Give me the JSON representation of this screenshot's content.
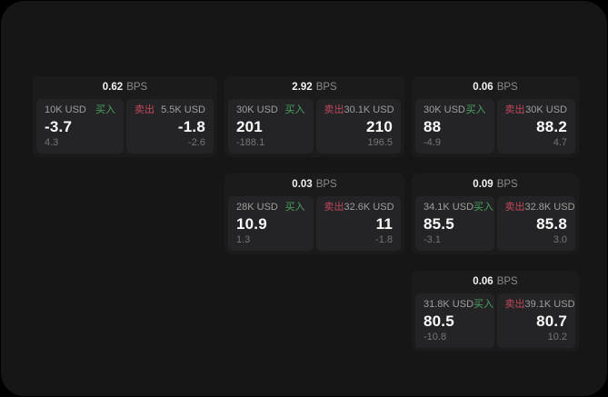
{
  "labels": {
    "buy": "买入",
    "sell": "卖出",
    "bps_suffix": "BPS"
  },
  "colors": {
    "page_bg": "#161617",
    "card_bg": "#1b1b1c",
    "panel_bg": "#242426",
    "buy_green": "#4aa35f",
    "sell_red": "#c0485c",
    "value_white": "#fafafa",
    "muted_gray": "#9e9e9e",
    "sub_gray": "#757575"
  },
  "cards": [
    {
      "row": 1,
      "col": 1,
      "bps": "0.62",
      "buy": {
        "amount": "10K USD",
        "value": "-3.7",
        "sub": "4.3"
      },
      "sell": {
        "amount": "5.5K USD",
        "value": "-1.8",
        "sub": "-2.6"
      }
    },
    {
      "row": 1,
      "col": 2,
      "bps": "2.92",
      "buy": {
        "amount": "30K USD",
        "value": "201",
        "sub": "-188.1"
      },
      "sell": {
        "amount": "30.1K USD",
        "value": "210",
        "sub": "196.5"
      }
    },
    {
      "row": 1,
      "col": 3,
      "bps": "0.06",
      "buy": {
        "amount": "30K USD",
        "value": "88",
        "sub": "-4.9"
      },
      "sell": {
        "amount": "30K USD",
        "value": "88.2",
        "sub": "4.7"
      }
    },
    {
      "row": 2,
      "col": 2,
      "bps": "0.03",
      "buy": {
        "amount": "28K USD",
        "value": "10.9",
        "sub": "1.3"
      },
      "sell": {
        "amount": "32.6K USD",
        "value": "11",
        "sub": "-1.8"
      }
    },
    {
      "row": 2,
      "col": 3,
      "bps": "0.09",
      "buy": {
        "amount": "34.1K USD",
        "value": "85.5",
        "sub": "-3.1"
      },
      "sell": {
        "amount": "32.8K USD",
        "value": "85.8",
        "sub": "3.0"
      }
    },
    {
      "row": 3,
      "col": 3,
      "bps": "0.06",
      "buy": {
        "amount": "31.8K USD",
        "value": "80.5",
        "sub": "-10.8"
      },
      "sell": {
        "amount": "39.1K USD",
        "value": "80.7",
        "sub": "10.2"
      }
    }
  ]
}
